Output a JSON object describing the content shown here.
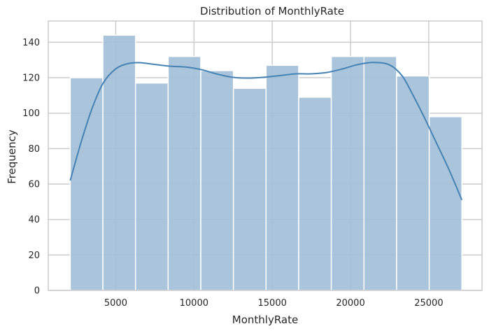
{
  "chart_data": {
    "type": "bar",
    "subtype": "histogram with kde line",
    "title": "Distribution of MonthlyRate",
    "xlabel": "MonthlyRate",
    "ylabel": "Frequency",
    "xlim": [
      690,
      28400
    ],
    "ylim": [
      0,
      152
    ],
    "grid": true,
    "x_ticks": [
      5000,
      10000,
      15000,
      20000,
      25000
    ],
    "y_ticks": [
      0,
      20,
      40,
      60,
      80,
      100,
      120,
      140
    ],
    "bins": [
      {
        "x0": 2094,
        "x1": 4179,
        "count": 120
      },
      {
        "x0": 4179,
        "x1": 6264,
        "count": 144
      },
      {
        "x0": 6264,
        "x1": 8349,
        "count": 117
      },
      {
        "x0": 8349,
        "x1": 10434,
        "count": 132
      },
      {
        "x0": 10434,
        "x1": 12519,
        "count": 124
      },
      {
        "x0": 12519,
        "x1": 14604,
        "count": 114
      },
      {
        "x0": 14604,
        "x1": 16689,
        "count": 127
      },
      {
        "x0": 16689,
        "x1": 18774,
        "count": 109
      },
      {
        "x0": 18774,
        "x1": 20859,
        "count": 132
      },
      {
        "x0": 20859,
        "x1": 22944,
        "count": 132
      },
      {
        "x0": 22944,
        "x1": 25029,
        "count": 121
      },
      {
        "x0": 25029,
        "x1": 27114,
        "count": 98
      }
    ],
    "kde": {
      "x": [
        2094,
        2800,
        3500,
        4200,
        5000,
        5800,
        6500,
        7500,
        8500,
        9500,
        10500,
        11500,
        12500,
        13500,
        14500,
        15500,
        16500,
        17500,
        18500,
        19500,
        20500,
        21500,
        22500,
        23300,
        24000,
        24800,
        25500,
        26300,
        27114
      ],
      "y": [
        62,
        84,
        103,
        117,
        125,
        128,
        128.5,
        127.5,
        126.5,
        126,
        124.5,
        122,
        120.2,
        119.8,
        120.3,
        121.2,
        122.2,
        122.2,
        123,
        125,
        127.5,
        128.6,
        127.2,
        121,
        110,
        96,
        83,
        68,
        51
      ]
    },
    "colors": {
      "bar_fill": "#a3bfd9",
      "bar_edge": "#ffffff",
      "kde_line": "#4682b4",
      "grid": "#cccccc",
      "axes_edge": "#cccccc"
    }
  }
}
